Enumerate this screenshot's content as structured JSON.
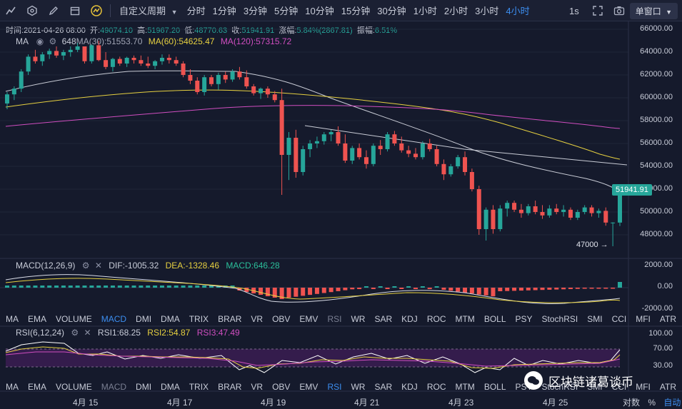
{
  "toolbar": {
    "custom_period": "自定义周期",
    "timeframes": [
      "分时",
      "1分钟",
      "3分钟",
      "5分钟",
      "10分钟",
      "15分钟",
      "30分钟",
      "1小时",
      "2小时",
      "3小时",
      "4小时"
    ],
    "active_timeframe": "4小时",
    "interval_right": "1s",
    "window_button": "单窗口"
  },
  "ohlc": {
    "time_label": "时间:",
    "time": "2021-04-26 08:00",
    "open_label": "开:",
    "open": "49074.10",
    "high_label": "高:",
    "high": "51967.20",
    "low_label": "低:",
    "low": "48770.63",
    "close_label": "收:",
    "close": "51941.91",
    "change_label": "涨幅:",
    "change": "5.84%(2867.81)",
    "amplitude_label": "振幅:",
    "amplitude": "6.51%"
  },
  "ma_legend": {
    "name": "MA",
    "ma_partial": "648",
    "ma30": "MA(30):51553.70",
    "ma60": "MA(60):54625.47",
    "ma120": "MA(120):57315.72"
  },
  "macd_legend": {
    "name": "MACD(12,26,9)",
    "dif": "DIF:-1005.32",
    "dea": "DEA:-1328.46",
    "macd": "MACD:646.28"
  },
  "rsi_legend": {
    "name": "RSI(6,12,24)",
    "rsi1": "RSI1:68.25",
    "rsi2": "RSI2:54.87",
    "rsi3": "RSI3:47.49"
  },
  "indicators_1": [
    "MA",
    "EMA",
    "VOLUME",
    "MACD",
    "DMI",
    "DMA",
    "TRIX",
    "BRAR",
    "VR",
    "OBV",
    "EMV",
    "RSI",
    "WR",
    "SAR",
    "KDJ",
    "ROC",
    "MTM",
    "BOLL",
    "PSY",
    "StochRSI",
    "SMI",
    "CCI",
    "MFI",
    "ATR"
  ],
  "indicators_2": [
    "MA",
    "EMA",
    "VOLUME",
    "MACD",
    "DMI",
    "DMA",
    "TRIX",
    "BRAR",
    "VR",
    "OBV",
    "EMV",
    "RSI",
    "WR",
    "SAR",
    "KDJ",
    "ROC",
    "MTM",
    "BOLL",
    "PSY",
    "StochRSI",
    "SMI",
    "CCI",
    "MFI",
    "ATR"
  ],
  "price_axis": [
    "66000.00",
    "64000.00",
    "62000.00",
    "60000.00",
    "58000.00",
    "56000.00",
    "54000.00",
    "52000.00",
    "50000.00",
    "48000.00"
  ],
  "current_price": "51941.91",
  "low_annotation": "47000 →",
  "macd_axis": [
    "2000.00",
    "0.00",
    "-2000.00"
  ],
  "rsi_axis": [
    "100.00",
    "70.00",
    "30.00"
  ],
  "dates": [
    "4月 15",
    "4月 17",
    "4月 19",
    "4月 21",
    "4月 23",
    "4月 25"
  ],
  "bottom_right": {
    "scale": "对数",
    "percent": "%",
    "auto": "自动"
  },
  "watermark": "区块链诸葛谈币",
  "colors": {
    "up": "#26a69a",
    "down": "#ef5350",
    "ma30": "#c9ccd6",
    "ma60": "#e6d040",
    "ma120": "#d04ec0",
    "accent": "#3c8ef0",
    "background": "#151a2c"
  },
  "chart_data": {
    "type": "candlestick",
    "y_range": [
      46500,
      66500
    ],
    "candles": [
      [
        59500,
        60500,
        59000,
        60300
      ],
      [
        60300,
        61000,
        59800,
        60800
      ],
      [
        60800,
        62500,
        60500,
        62300
      ],
      [
        62300,
        63800,
        62000,
        63600
      ],
      [
        63600,
        64200,
        63000,
        63200
      ],
      [
        63200,
        64000,
        62800,
        63800
      ],
      [
        63800,
        64300,
        63400,
        64100
      ],
      [
        64100,
        64500,
        63500,
        63700
      ],
      [
        63700,
        64200,
        63300,
        64000
      ],
      [
        64000,
        64500,
        63600,
        64200
      ],
      [
        64200,
        64800,
        64000,
        64500
      ],
      [
        64500,
        64500,
        63000,
        63200
      ],
      [
        63200,
        64700,
        63000,
        64600
      ],
      [
        64600,
        65000,
        63200,
        63300
      ],
      [
        63300,
        64000,
        62500,
        62700
      ],
      [
        62700,
        63500,
        62300,
        63400
      ],
      [
        63400,
        63600,
        62800,
        63000
      ],
      [
        63000,
        63600,
        62700,
        63500
      ],
      [
        63500,
        63700,
        63000,
        63300
      ],
      [
        63300,
        63700,
        62800,
        63000
      ],
      [
        63000,
        63600,
        62600,
        62800
      ],
      [
        62800,
        63300,
        62500,
        63200
      ],
      [
        63200,
        63800,
        62900,
        63500
      ],
      [
        63500,
        63800,
        63000,
        63300
      ],
      [
        63300,
        63600,
        62800,
        63000
      ],
      [
        63000,
        63200,
        61800,
        62000
      ],
      [
        62000,
        62500,
        61200,
        61500
      ],
      [
        61500,
        61800,
        60300,
        60500
      ],
      [
        60500,
        62000,
        60200,
        61800
      ],
      [
        61800,
        62000,
        61000,
        61200
      ],
      [
        61200,
        62200,
        60700,
        62000
      ],
      [
        62000,
        62300,
        61300,
        61600
      ],
      [
        61600,
        62500,
        61400,
        62300
      ],
      [
        62300,
        62700,
        61600,
        61800
      ],
      [
        61800,
        62400,
        60800,
        61000
      ],
      [
        61000,
        61200,
        60200,
        60400
      ],
      [
        60400,
        60900,
        59900,
        60800
      ],
      [
        60800,
        61000,
        60000,
        60300
      ],
      [
        60300,
        60600,
        59600,
        59800
      ],
      [
        59800,
        60800,
        51500,
        55000
      ],
      [
        55000,
        57000,
        52800,
        56500
      ],
      [
        56500,
        57200,
        53000,
        53500
      ],
      [
        53500,
        55800,
        53200,
        55500
      ],
      [
        55500,
        56300,
        54800,
        56000
      ],
      [
        56000,
        56600,
        55600,
        56200
      ],
      [
        56200,
        57000,
        55900,
        56800
      ],
      [
        56800,
        57200,
        56200,
        57000
      ],
      [
        57000,
        57500,
        55800,
        56000
      ],
      [
        56000,
        56800,
        54300,
        54500
      ],
      [
        54500,
        55800,
        54200,
        55600
      ],
      [
        55600,
        56000,
        54600,
        54800
      ],
      [
        54800,
        55400,
        53800,
        54200
      ],
      [
        54200,
        56000,
        54000,
        55800
      ],
      [
        55800,
        56300,
        55000,
        55500
      ],
      [
        55500,
        57000,
        55300,
        56800
      ],
      [
        56800,
        57100,
        55800,
        56000
      ],
      [
        56000,
        56600,
        55200,
        55400
      ],
      [
        55400,
        55800,
        54800,
        55100
      ],
      [
        55100,
        55600,
        54600,
        54800
      ],
      [
        54800,
        56200,
        54600,
        56000
      ],
      [
        56000,
        56400,
        55300,
        55500
      ],
      [
        55500,
        55800,
        54000,
        54200
      ],
      [
        54200,
        54600,
        52800,
        53300
      ],
      [
        53300,
        54200,
        53100,
        54000
      ],
      [
        54000,
        55000,
        53800,
        54800
      ],
      [
        54800,
        55300,
        53200,
        53500
      ],
      [
        53500,
        53800,
        51800,
        52000
      ],
      [
        52000,
        52300,
        48000,
        48500
      ],
      [
        48500,
        50400,
        47500,
        50200
      ],
      [
        50200,
        50600,
        48100,
        48500
      ],
      [
        48500,
        50600,
        48300,
        50300
      ],
      [
        50300,
        51000,
        49600,
        50800
      ],
      [
        50800,
        51000,
        50000,
        50200
      ],
      [
        50200,
        50700,
        49500,
        49900
      ],
      [
        49900,
        50700,
        49700,
        50500
      ],
      [
        50500,
        51000,
        49800,
        50000
      ],
      [
        50000,
        50600,
        49400,
        49700
      ],
      [
        49700,
        50600,
        49500,
        50300
      ],
      [
        50300,
        50700,
        49800,
        50000
      ],
      [
        50000,
        50600,
        49600,
        50200
      ],
      [
        50200,
        50400,
        49300,
        49500
      ],
      [
        49500,
        50200,
        49300,
        50000
      ],
      [
        50000,
        50600,
        49800,
        50400
      ],
      [
        50400,
        50600,
        49600,
        49900
      ],
      [
        49900,
        50300,
        49500,
        50100
      ],
      [
        50100,
        50400,
        48800,
        49074
      ],
      [
        49074,
        49100,
        47000,
        49074
      ],
      [
        49074,
        51967,
        48770,
        51942
      ]
    ]
  }
}
